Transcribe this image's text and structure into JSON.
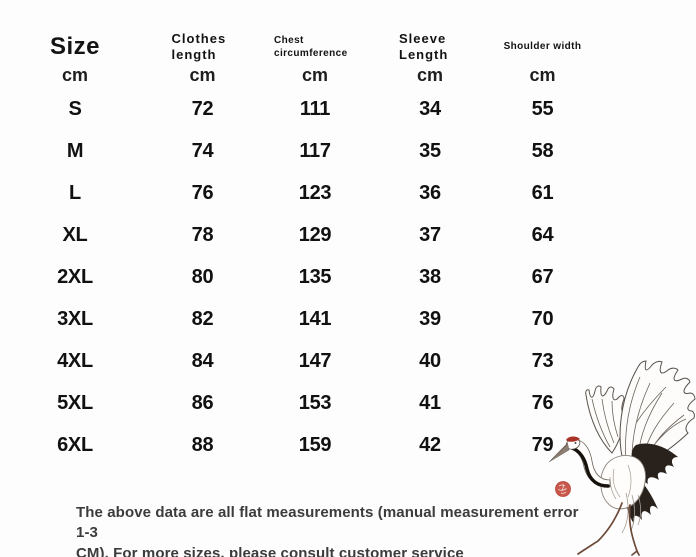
{
  "table": {
    "columns": [
      {
        "id": "size",
        "label": "Size",
        "unit": "cm"
      },
      {
        "id": "clothes_length",
        "label": "Clothes length",
        "unit": "cm"
      },
      {
        "id": "chest_circumference",
        "label": "Chest circumference",
        "unit": "cm"
      },
      {
        "id": "sleeve_length",
        "label": "Sleeve Length",
        "unit": "cm"
      },
      {
        "id": "shoulder_width",
        "label": "Shoulder width",
        "unit": "cm"
      }
    ],
    "rows": [
      {
        "size": "S",
        "clothes_length": "72",
        "chest_circumference": "111",
        "sleeve_length": "34",
        "shoulder_width": "55"
      },
      {
        "size": "M",
        "clothes_length": "74",
        "chest_circumference": "117",
        "sleeve_length": "35",
        "shoulder_width": "58"
      },
      {
        "size": "L",
        "clothes_length": "76",
        "chest_circumference": "123",
        "sleeve_length": "36",
        "shoulder_width": "61"
      },
      {
        "size": "XL",
        "clothes_length": "78",
        "chest_circumference": "129",
        "sleeve_length": "37",
        "shoulder_width": "64"
      },
      {
        "size": "2XL",
        "clothes_length": "80",
        "chest_circumference": "135",
        "sleeve_length": "38",
        "shoulder_width": "67"
      },
      {
        "size": "3XL",
        "clothes_length": "82",
        "chest_circumference": "141",
        "sleeve_length": "39",
        "shoulder_width": "70"
      },
      {
        "size": "4XL",
        "clothes_length": "84",
        "chest_circumference": "147",
        "sleeve_length": "40",
        "shoulder_width": "73"
      },
      {
        "size": "5XL",
        "clothes_length": "86",
        "chest_circumference": "153",
        "sleeve_length": "41",
        "shoulder_width": "76"
      },
      {
        "size": "6XL",
        "clothes_length": "88",
        "chest_circumference": "159",
        "sleeve_length": "42",
        "shoulder_width": "79"
      }
    ]
  },
  "note": {
    "line1": "The above data are all flat measurements (manual measurement error 1-3",
    "line2": "CM). For more sizes, please consult customer service"
  },
  "decoration": {
    "crane": "red-crowned crane ink illustration",
    "crown_color": "#a93226",
    "seal_color": "#c9584c",
    "feather_dark": "#29221c",
    "leg_color": "#6d4a3a"
  }
}
